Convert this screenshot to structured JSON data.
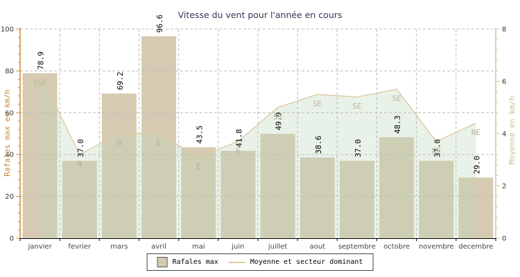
{
  "title": "Vitesse du vent pour l'année en cours",
  "legend": {
    "entries": [
      "Rafales max",
      "Moyenne et secteur dominant"
    ]
  },
  "colors": {
    "bar_fill": "#d6cbb2",
    "area_fill": "rgba(188,214,182,0.32)",
    "line": "#ddcaa4",
    "axis_left": "#c9873a",
    "axis_right": "#d2c79f",
    "axis_right_label": "#c6bd95",
    "axis_bottom": "#000000",
    "grid": "#bcbcbc",
    "title": "#2f3a56",
    "tick_text": "#333333",
    "month_text": "#444444",
    "value_text": "#000000",
    "direction_text": "#b9b19e"
  },
  "chart_data": {
    "type": "bar",
    "title": "Vitesse du vent pour l'année en cours",
    "categories": [
      "janvier",
      "fevrier",
      "mars",
      "avril",
      "mai",
      "juin",
      "juillet",
      "aout",
      "septembre",
      "octobre",
      "novembre",
      "decembre"
    ],
    "series": [
      {
        "name": "Rafales max",
        "type": "bar",
        "yaxis": "left",
        "unit": "km/h",
        "values": [
          78.9,
          37.0,
          69.2,
          96.6,
          43.5,
          41.8,
          49.9,
          38.6,
          37.0,
          48.3,
          37.0,
          29.0
        ]
      },
      {
        "name": "Moyenne et secteur dominant",
        "type": "area-line",
        "yaxis": "right",
        "unit": "km/h",
        "values": [
          6.3,
          3.2,
          4.0,
          4.0,
          3.1,
          3.7,
          5.0,
          5.5,
          5.4,
          5.7,
          3.7,
          4.4
        ],
        "directions": [
          "SSE",
          "N",
          "N",
          "E",
          "E",
          "E",
          "SE",
          "SE",
          "SE",
          "SE",
          "NE",
          "NE"
        ]
      }
    ],
    "axes": {
      "left": {
        "label": "Rafales max en km/h",
        "min": 0,
        "max": 100,
        "ticks": [
          0,
          20,
          40,
          60,
          80,
          100
        ],
        "minor_step": 4
      },
      "right": {
        "label": "Moyenne en km/h",
        "min": 0,
        "max": 8,
        "ticks": [
          0,
          2,
          4,
          6,
          8
        ],
        "minor_step": 0.4
      }
    },
    "grid": true,
    "legend_position": "bottom"
  }
}
